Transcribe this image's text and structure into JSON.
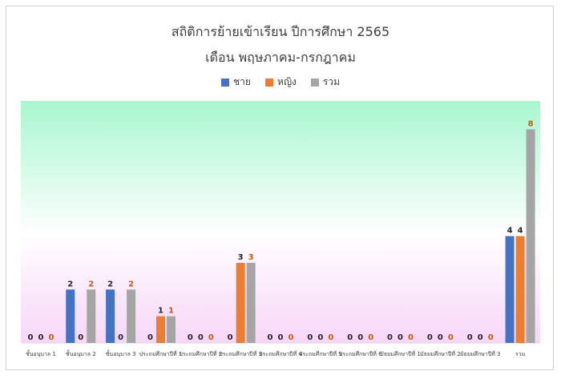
{
  "chart_data": {
    "type": "bar",
    "title": "สถิติการย้ายเข้าเรียน ปีการศึกษา 2565",
    "subtitle": "เดือน พฤษภาคม-กรกฎาคม",
    "categories": [
      "ชั้นอนุบาล 1",
      "ชั้นอนุบาล 2",
      "ชั้นอนุบาล 3",
      "ประถมศึกษาปีที่ 1",
      "ประถมศึกษาปีที่ 2",
      "ประถมศึกษาปีที่ 3",
      "ประถมศึกษาปีที่ 4",
      "ประถมศึกษาปีที่ 5",
      "ประถมศึกษาปีที่ 6",
      "มัธยมศึกษาปีที่ 1",
      "มัธยมศึกษาปีที่ 2",
      "มัธยมศึกษาปีที่ 3",
      "รวม"
    ],
    "series": [
      {
        "name": "ชาย",
        "color": "#4472c4",
        "label_color": "#262626",
        "values": [
          0,
          2,
          2,
          0,
          0,
          0,
          0,
          0,
          0,
          0,
          0,
          0,
          4
        ]
      },
      {
        "name": "หญิง",
        "color": "#ed7d31",
        "label_color": "#262626",
        "values": [
          0,
          0,
          0,
          1,
          0,
          3,
          0,
          0,
          0,
          0,
          0,
          0,
          4
        ]
      },
      {
        "name": "รวม",
        "color": "#a5a5a5",
        "label_color": "#c55a11",
        "values": [
          0,
          2,
          2,
          1,
          0,
          3,
          0,
          0,
          0,
          0,
          0,
          0,
          8
        ]
      }
    ],
    "ylim": [
      0,
      9
    ],
    "legend_position": "top",
    "grid": false,
    "plot_background": [
      "#a8f7cf",
      "#ffffff",
      "#f7d6f7"
    ]
  }
}
